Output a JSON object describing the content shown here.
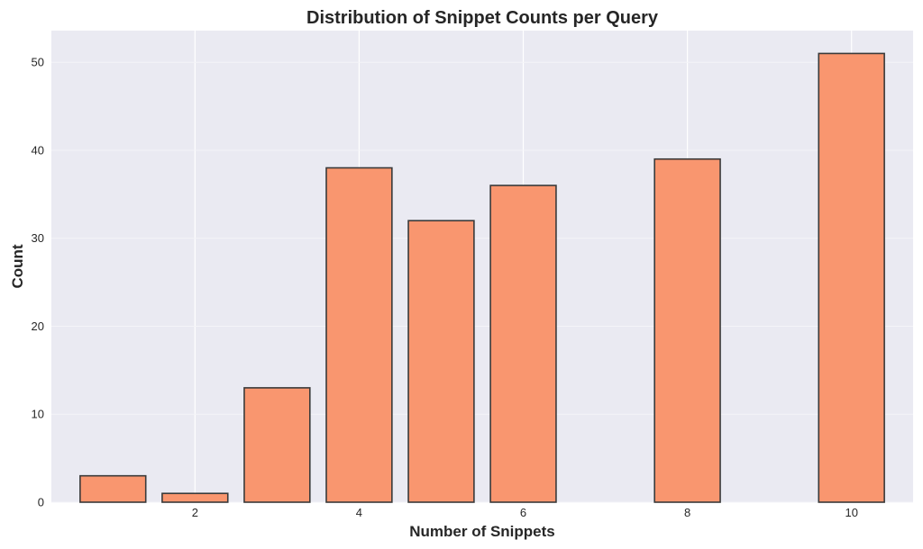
{
  "chart_data": {
    "type": "bar",
    "title": "Distribution of Snippet Counts per Query",
    "xlabel": "Number of Snippets",
    "ylabel": "Count",
    "x": [
      1,
      2,
      3,
      4,
      5,
      6,
      8,
      10
    ],
    "values": [
      3,
      1,
      13,
      38,
      32,
      36,
      39,
      51
    ],
    "xlim": [
      0.25,
      10.75
    ],
    "ylim": [
      0,
      53.6
    ],
    "xticks": [
      2,
      4,
      6,
      8,
      10
    ],
    "yticks": [
      0,
      10,
      20,
      30,
      40,
      50
    ],
    "bar_color": "#f9966f",
    "bar_edge_color": "#3a3a3a",
    "background_color": "#eaeaf2",
    "grid": true
  }
}
